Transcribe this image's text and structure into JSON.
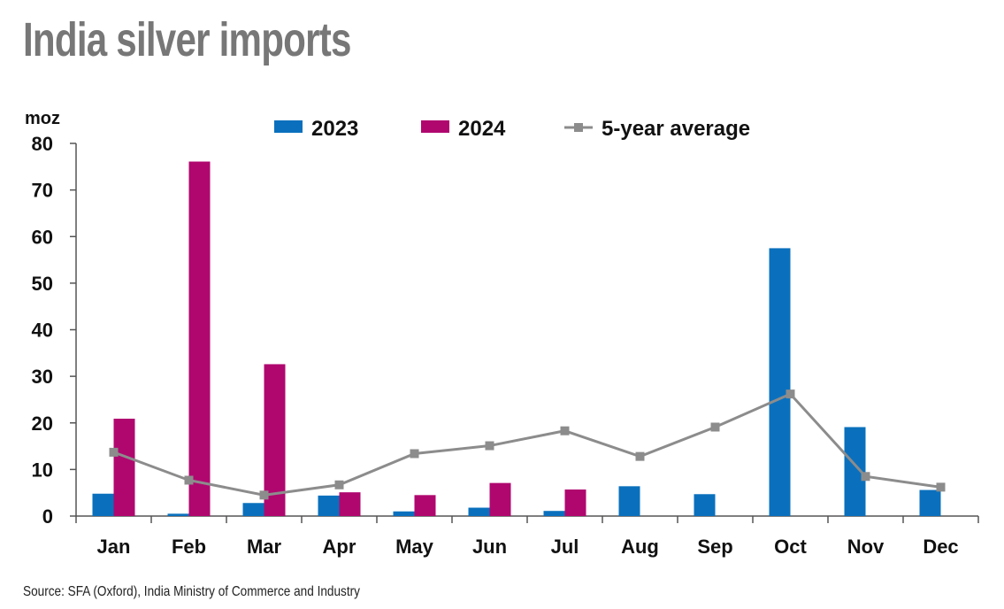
{
  "title": "India silver imports",
  "source": "Source: SFA (Oxford), India Ministry of Commerce and Industry",
  "chart_data": {
    "type": "bar",
    "title": "India silver imports",
    "ylabel": "moz",
    "xlabel": "",
    "ylim": [
      0,
      80
    ],
    "yticks": [
      0,
      10,
      20,
      30,
      40,
      50,
      60,
      70,
      80
    ],
    "categories": [
      "Jan",
      "Feb",
      "Mar",
      "Apr",
      "May",
      "Jun",
      "Jul",
      "Aug",
      "Sep",
      "Oct",
      "Nov",
      "Dec"
    ],
    "series": [
      {
        "name": "2023",
        "kind": "bar",
        "color": "#0a70bd",
        "values": [
          4.8,
          0.5,
          2.8,
          4.4,
          1.0,
          1.8,
          1.1,
          6.4,
          4.7,
          57.5,
          19.1,
          5.6
        ]
      },
      {
        "name": "2024",
        "kind": "bar",
        "color": "#b0076f",
        "values": [
          20.9,
          76.1,
          32.6,
          5.1,
          4.5,
          7.1,
          5.7,
          null,
          null,
          null,
          null,
          null
        ]
      },
      {
        "name": "5-year average",
        "kind": "line",
        "color": "#8c8c8c",
        "values": [
          13.7,
          7.7,
          4.5,
          6.7,
          13.4,
          15.1,
          18.3,
          12.8,
          19.1,
          26.2,
          8.5,
          6.2
        ]
      }
    ],
    "legend_position": "top",
    "grid": false
  }
}
